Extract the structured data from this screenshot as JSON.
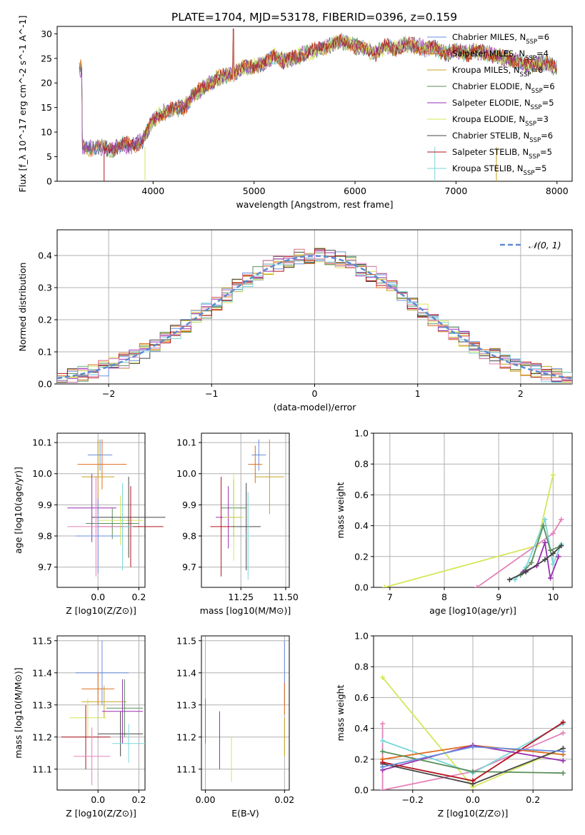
{
  "title": "PLATE=1704, MJD=53178, FIBERID=0396, z=0.159",
  "colors": [
    "#6a8fdc",
    "#e06d1c",
    "#c8a21e",
    "#5a8f5a",
    "#9a2fb0",
    "#d6e658",
    "#444444",
    "#b2141e",
    "#7ad6d9",
    "#e383b9"
  ],
  "chart_data": [
    {
      "id": "spectrum",
      "type": "line",
      "xlabel": "wavelength [Angstrom, rest frame]",
      "ylabel": "Flux [f_λ 10^-17 erg cm^-2 s^-1 A^-1]",
      "xlim": [
        3050,
        8150
      ],
      "ylim": [
        0,
        31.5
      ],
      "xticks": [
        4000,
        5000,
        6000,
        7000,
        8000
      ],
      "yticks": [
        0,
        5,
        10,
        15,
        20,
        25,
        30
      ],
      "legend_position": "upper right",
      "grid": false,
      "series_envelope": [
        [
          3300,
          7.0
        ],
        [
          3400,
          6.7
        ],
        [
          3500,
          6.9
        ],
        [
          3600,
          6.5
        ],
        [
          3700,
          7.5
        ],
        [
          3800,
          7.2
        ],
        [
          3900,
          8.5
        ],
        [
          4000,
          12.5
        ],
        [
          4100,
          14.0
        ],
        [
          4200,
          14.8
        ],
        [
          4300,
          15.0
        ],
        [
          4400,
          17.5
        ],
        [
          4500,
          19.0
        ],
        [
          4600,
          20.5
        ],
        [
          4700,
          21.5
        ],
        [
          4800,
          22.0
        ],
        [
          4900,
          23.0
        ],
        [
          5000,
          23.5
        ],
        [
          5100,
          24.0
        ],
        [
          5200,
          25.5
        ],
        [
          5300,
          24.5
        ],
        [
          5400,
          25.0
        ],
        [
          5500,
          26.0
        ],
        [
          5600,
          26.5
        ],
        [
          5700,
          27.5
        ],
        [
          5800,
          28.0
        ],
        [
          5900,
          28.5
        ],
        [
          6000,
          27.5
        ],
        [
          6100,
          27.0
        ],
        [
          6200,
          26.0
        ],
        [
          6300,
          27.5
        ],
        [
          6400,
          27.0
        ],
        [
          6500,
          27.8
        ],
        [
          6600,
          27.5
        ],
        [
          6700,
          27.0
        ],
        [
          6800,
          27.0
        ],
        [
          6900,
          26.0
        ],
        [
          7000,
          26.5
        ],
        [
          7100,
          26.0
        ],
        [
          7200,
          26.5
        ],
        [
          7300,
          26.0
        ],
        [
          7400,
          25.5
        ],
        [
          7500,
          25.0
        ],
        [
          7600,
          24.5
        ],
        [
          7700,
          23.5
        ],
        [
          7800,
          24.0
        ],
        [
          7900,
          24.0
        ],
        [
          8000,
          23.0
        ]
      ],
      "series": [
        {
          "name": "Chabrier MILES, N_SSP=6"
        },
        {
          "name": "Salpeter MILES, N_SSP=4"
        },
        {
          "name": "Kroupa MILES, N_SSP=6"
        },
        {
          "name": "Chabrier ELODIE, N_SSP=6"
        },
        {
          "name": "Salpeter ELODIE, N_SSP=5"
        },
        {
          "name": "Kroupa ELODIE, N_SSP=3"
        },
        {
          "name": "Chabrier STELIB, N_SSP=6"
        },
        {
          "name": "Salpeter STELIB, N_SSP=5"
        },
        {
          "name": "Kroupa STELIB, N_SSP=5"
        }
      ]
    },
    {
      "id": "residuals",
      "type": "area",
      "xlabel": "(data-model)/error",
      "ylabel": "Normed distribution",
      "xlim": [
        -2.5,
        2.5
      ],
      "ylim": [
        0,
        0.48
      ],
      "xticks": [
        -2,
        -1,
        0,
        1,
        2
      ],
      "yticks": [
        0.0,
        0.1,
        0.2,
        0.3,
        0.4
      ],
      "grid": true,
      "bins": 50,
      "legend": "𝒩(0, 1)"
    },
    {
      "id": "age_vs_Z",
      "type": "scatter",
      "xlabel": "Z [log10(Z/Z⊙)]",
      "ylabel": "age [log10(age/yr)]",
      "xlim": [
        -0.2,
        0.23
      ],
      "ylim": [
        9.635,
        10.13
      ],
      "xticks": [
        0.0,
        0.2
      ],
      "yticks": [
        9.7,
        9.8,
        9.9,
        10.0,
        10.1
      ],
      "points": [
        [
          0.01,
          10.06,
          0.06,
          0.05
        ],
        [
          0.02,
          10.03,
          0.12,
          0.08
        ],
        [
          0.0,
          9.99,
          0.08,
          0.12
        ],
        [
          0.07,
          9.84,
          0.13,
          0.05
        ],
        [
          -0.03,
          9.89,
          0.12,
          0.11
        ],
        [
          0.11,
          9.85,
          0.11,
          0.08
        ],
        [
          0.15,
          9.86,
          0.18,
          0.13
        ],
        [
          0.16,
          9.83,
          0.16,
          0.13
        ],
        [
          0.12,
          9.83,
          0.05,
          0.14
        ],
        [
          -0.01,
          9.83,
          0.14,
          0.16
        ],
        [
          0.0,
          9.8,
          0.11,
          0.12
        ]
      ]
    },
    {
      "id": "age_vs_mass",
      "type": "scatter",
      "xlabel": "mass [log10(M/M⊙)]",
      "ylabel": "",
      "xlim": [
        11.03,
        11.52
      ],
      "ylim": [
        9.635,
        10.13
      ],
      "xticks": [
        11.25,
        11.5
      ],
      "yticks": [
        9.7,
        9.8,
        9.9,
        10.0,
        10.1
      ],
      "points": [
        [
          11.35,
          10.06,
          0.04,
          0.05
        ],
        [
          11.33,
          10.03,
          0.04,
          0.06
        ],
        [
          11.41,
          9.99,
          0.08,
          0.12
        ],
        [
          11.21,
          9.89,
          0.07,
          0.09
        ],
        [
          11.18,
          9.86,
          0.07,
          0.1
        ],
        [
          11.21,
          9.86,
          0.06,
          0.14
        ],
        [
          11.28,
          9.83,
          0.08,
          0.14
        ],
        [
          11.14,
          9.83,
          0.06,
          0.16
        ],
        [
          11.29,
          9.8,
          0.02,
          0.14
        ]
      ]
    },
    {
      "id": "mass_weight_vs_age",
      "type": "line",
      "xlabel": "age [log10(age/yr)]",
      "ylabel": "mass weight",
      "xlim": [
        6.7,
        10.35
      ],
      "ylim": [
        0,
        1.0
      ],
      "xticks": [
        7,
        8,
        9,
        10
      ],
      "yticks": [
        0.0,
        0.2,
        0.4,
        0.6,
        0.8,
        1.0
      ],
      "series": [
        {
          "points": [
            [
              6.9,
              0.0
            ],
            [
              9.7,
              0.27
            ],
            [
              10.0,
              0.73
            ]
          ]
        },
        {
          "points": [
            [
              8.6,
              0.0
            ],
            [
              10.0,
              0.35
            ],
            [
              10.15,
              0.44
            ]
          ]
        },
        {
          "points": [
            [
              9.3,
              0.05
            ],
            [
              9.5,
              0.13
            ],
            [
              9.85,
              0.44
            ],
            [
              10.0,
              0.15
            ],
            [
              10.15,
              0.28
            ]
          ]
        },
        {
          "points": [
            [
              9.4,
              0.08
            ],
            [
              9.6,
              0.16
            ],
            [
              9.82,
              0.4
            ],
            [
              9.95,
              0.24
            ],
            [
              10.15,
              0.27
            ]
          ]
        },
        {
          "points": [
            [
              9.45,
              0.1
            ],
            [
              9.7,
              0.14
            ],
            [
              9.85,
              0.29
            ],
            [
              9.95,
              0.06
            ],
            [
              10.1,
              0.2
            ]
          ]
        },
        {
          "points": [
            [
              9.2,
              0.05
            ],
            [
              9.5,
              0.1
            ],
            [
              9.85,
              0.18
            ],
            [
              10.0,
              0.22
            ],
            [
              10.15,
              0.27
            ]
          ]
        }
      ]
    },
    {
      "id": "mass_vs_Z",
      "type": "scatter",
      "xlabel": "Z [log10(Z/Z⊙)]",
      "ylabel": "mass [log10(M/M⊙)]",
      "xlim": [
        -0.2,
        0.23
      ],
      "ylim": [
        11.035,
        11.515
      ],
      "xticks": [
        0.0,
        0.2
      ],
      "yticks": [
        11.1,
        11.2,
        11.3,
        11.4,
        11.5
      ],
      "points": [
        [
          0.02,
          11.4,
          0.13,
          0.1
        ],
        [
          0.0,
          11.35,
          0.08,
          0.05
        ],
        [
          0.03,
          11.31,
          0.11,
          0.05
        ],
        [
          0.13,
          11.29,
          0.09,
          0.09
        ],
        [
          0.12,
          11.28,
          0.1,
          0.1
        ],
        [
          -0.05,
          11.26,
          0.09,
          0.06
        ],
        [
          0.11,
          11.21,
          0.11,
          0.07
        ],
        [
          -0.06,
          11.2,
          0.12,
          0.1
        ],
        [
          0.15,
          11.18,
          0.08,
          0.06
        ],
        [
          -0.03,
          11.14,
          0.09,
          0.09
        ]
      ]
    },
    {
      "id": "mass_vs_ebv",
      "type": "scatter",
      "xlabel": "E(B-V)",
      "ylabel": "",
      "xlim": [
        -0.001,
        0.0212
      ],
      "ylim": [
        11.035,
        11.515
      ],
      "xticks": [
        0.0,
        0.02
      ],
      "yticks": [
        11.1,
        11.2,
        11.3,
        11.4,
        11.5
      ],
      "points": [
        [
          0.02,
          11.4,
          0,
          0.1
        ],
        [
          0.02,
          11.32,
          0,
          0.05
        ],
        [
          0.02,
          11.2,
          0,
          0.06
        ],
        [
          0.0,
          11.25,
          0,
          0.07
        ],
        [
          0.0036,
          11.19,
          0,
          0.09
        ],
        [
          0.0066,
          11.13,
          0,
          0.07
        ]
      ]
    },
    {
      "id": "mass_weight_vs_Z",
      "type": "line",
      "xlabel": "Z [log10(Z/Z⊙)]",
      "ylabel": "mass weight",
      "xlim": [
        -0.33,
        0.33
      ],
      "ylim": [
        0,
        1.0
      ],
      "xticks": [
        -0.2,
        0.0,
        0.2
      ],
      "yticks": [
        0.0,
        0.2,
        0.4,
        0.6,
        0.8,
        1.0
      ],
      "series": [
        {
          "points": [
            [
              -0.3,
              0.73
            ],
            [
              0.0,
              0.02
            ],
            [
              0.3,
              0.27
            ]
          ]
        },
        {
          "points": [
            [
              -0.3,
              0.43
            ],
            [
              -0.3,
              0.0
            ],
            [
              0.0,
              0.12
            ],
            [
              0.3,
              0.37
            ]
          ]
        },
        {
          "points": [
            [
              -0.3,
              0.32
            ],
            [
              0.0,
              0.11
            ],
            [
              0.3,
              0.43
            ]
          ]
        },
        {
          "points": [
            [
              -0.3,
              0.2
            ],
            [
              0.0,
              0.29
            ],
            [
              0.3,
              0.23
            ]
          ]
        },
        {
          "points": [
            [
              -0.3,
              0.13
            ],
            [
              0.0,
              0.29
            ],
            [
              0.3,
              0.19
            ]
          ]
        },
        {
          "points": [
            [
              -0.3,
              0.25
            ],
            [
              0.0,
              0.12
            ],
            [
              0.3,
              0.11
            ]
          ]
        },
        {
          "points": [
            [
              -0.3,
              0.17
            ],
            [
              0.0,
              0.04
            ],
            [
              0.3,
              0.27
            ]
          ]
        },
        {
          "points": [
            [
              -0.3,
              0.18
            ],
            [
              0.0,
              0.06
            ],
            [
              0.3,
              0.44
            ]
          ]
        },
        {
          "points": [
            [
              -0.3,
              0.15
            ],
            [
              0.0,
              0.28
            ],
            [
              0.3,
              0.25
            ]
          ]
        }
      ]
    }
  ]
}
